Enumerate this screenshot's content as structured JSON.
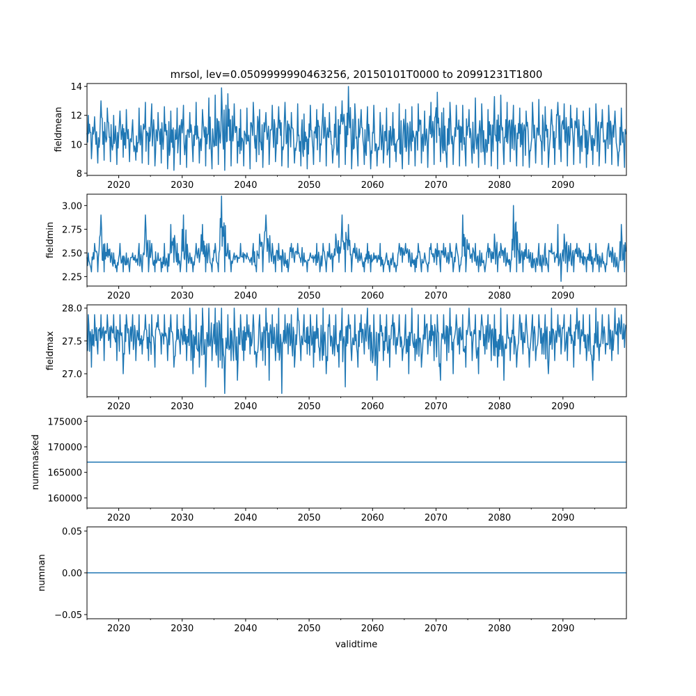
{
  "chart_data": {
    "title": "mrsol, lev=0.0509999990463256, 20150101T0000 to 20991231T1800",
    "xlabel": "validtime",
    "xlim": [
      2015,
      2100
    ],
    "x_ticks": [
      2020,
      2030,
      2040,
      2050,
      2060,
      2070,
      2080,
      2090
    ],
    "x_tick_labels": [
      "2020",
      "2030",
      "2040",
      "2050",
      "2060",
      "2070",
      "2080",
      "2090"
    ],
    "series_color": "#1f77b4",
    "panels": [
      {
        "name": "fieldmean",
        "type": "line",
        "ylabel": "fieldmean",
        "ylim": [
          7.85,
          14.2
        ],
        "yticks": [
          8,
          10,
          12,
          14
        ],
        "ytick_labels": [
          "8",
          "10",
          "12",
          "14"
        ],
        "x": [
          2015,
          2016,
          2017,
          2018,
          2019,
          2020,
          2021,
          2022,
          2023,
          2024,
          2025,
          2026,
          2027,
          2028,
          2029,
          2030,
          2031,
          2032,
          2033,
          2034,
          2035,
          2036,
          2037,
          2038,
          2039,
          2040,
          2041,
          2042,
          2043,
          2044,
          2045,
          2046,
          2047,
          2048,
          2049,
          2050,
          2051,
          2052,
          2053,
          2054,
          2055,
          2056,
          2057,
          2058,
          2059,
          2060,
          2061,
          2062,
          2063,
          2064,
          2065,
          2066,
          2067,
          2068,
          2069,
          2070,
          2071,
          2072,
          2073,
          2074,
          2075,
          2076,
          2077,
          2078,
          2079,
          2080,
          2081,
          2082,
          2083,
          2084,
          2085,
          2086,
          2087,
          2088,
          2089,
          2090,
          2091,
          2092,
          2093,
          2094,
          2095,
          2096,
          2097,
          2098,
          2099,
          2100
        ],
        "ymax": [
          12.0,
          11.9,
          13.0,
          12.5,
          12.0,
          12.3,
          12.4,
          11.7,
          12.5,
          12.9,
          12.8,
          12.2,
          12.6,
          12.3,
          12.5,
          12.7,
          12.2,
          12.9,
          12.4,
          13.2,
          13.4,
          13.9,
          13.5,
          12.8,
          12.4,
          12.5,
          12.9,
          12.4,
          12.2,
          12.7,
          12.6,
          12.9,
          12.2,
          12.8,
          12.1,
          12.7,
          12.4,
          12.8,
          12.2,
          12.6,
          13.0,
          14.0,
          12.8,
          12.4,
          12.6,
          12.7,
          12.2,
          12.5,
          12.2,
          12.8,
          12.4,
          12.6,
          12.8,
          12.3,
          12.9,
          13.6,
          12.5,
          12.9,
          12.7,
          12.7,
          12.4,
          13.2,
          12.8,
          12.4,
          13.3,
          13.4,
          12.9,
          12.7,
          12.5,
          12.3,
          12.9,
          13.1,
          12.6,
          12.4,
          12.9,
          12.8,
          12.7,
          12.5,
          12.3,
          12.5,
          12.8,
          12.4,
          12.7,
          12.3,
          12.5,
          12.4
        ],
        "ymin": [
          9.0,
          8.7,
          8.9,
          8.8,
          8.6,
          9.1,
          8.8,
          8.9,
          8.7,
          8.6,
          8.5,
          8.7,
          8.3,
          8.2,
          8.6,
          8.4,
          8.8,
          8.7,
          8.5,
          8.3,
          8.6,
          8.2,
          8.5,
          8.7,
          8.5,
          8.3,
          8.8,
          8.4,
          8.6,
          8.8,
          8.5,
          8.4,
          8.7,
          8.5,
          8.3,
          8.6,
          8.8,
          8.5,
          8.7,
          8.4,
          8.6,
          8.3,
          8.5,
          8.6,
          8.3,
          8.5,
          8.7,
          8.4,
          8.8,
          8.3,
          8.6,
          8.5,
          8.7,
          8.4,
          8.6,
          8.8,
          8.4,
          8.6,
          8.5,
          8.5,
          8.7,
          8.4,
          8.6,
          8.5,
          8.3,
          8.6,
          8.8,
          8.5,
          8.5,
          8.4,
          8.7,
          8.6,
          8.4,
          8.6,
          8.8,
          8.5,
          8.6,
          8.7,
          8.4,
          8.6,
          8.5,
          8.7,
          8.6,
          8.5,
          8.4,
          8.5
        ]
      },
      {
        "name": "fieldmin",
        "type": "line",
        "ylabel": "fieldmin",
        "ylim": [
          2.15,
          3.12
        ],
        "yticks": [
          2.25,
          2.5,
          2.75,
          3.0
        ],
        "ytick_labels": [
          "2.25",
          "2.50",
          "2.75",
          "3.00"
        ],
        "x": [
          2015,
          2016,
          2017,
          2018,
          2019,
          2020,
          2021,
          2022,
          2023,
          2024,
          2025,
          2026,
          2027,
          2028,
          2029,
          2030,
          2031,
          2032,
          2033,
          2034,
          2035,
          2036,
          2037,
          2038,
          2039,
          2040,
          2041,
          2042,
          2043,
          2044,
          2045,
          2046,
          2047,
          2048,
          2049,
          2050,
          2051,
          2052,
          2053,
          2054,
          2055,
          2056,
          2057,
          2058,
          2059,
          2060,
          2061,
          2062,
          2063,
          2064,
          2065,
          2066,
          2067,
          2068,
          2069,
          2070,
          2071,
          2072,
          2073,
          2074,
          2075,
          2076,
          2077,
          2078,
          2079,
          2080,
          2081,
          2082,
          2083,
          2084,
          2085,
          2086,
          2087,
          2088,
          2089,
          2090,
          2091,
          2092,
          2093,
          2094,
          2095,
          2096,
          2097,
          2098,
          2099,
          2100
        ],
        "ymax": [
          2.5,
          2.6,
          2.9,
          2.6,
          2.5,
          2.6,
          2.5,
          2.5,
          2.6,
          2.9,
          2.6,
          2.5,
          2.6,
          2.8,
          2.6,
          2.9,
          2.5,
          2.6,
          2.8,
          2.6,
          2.6,
          3.1,
          2.6,
          2.5,
          2.6,
          2.5,
          2.6,
          2.7,
          2.9,
          2.6,
          2.6,
          2.5,
          2.6,
          2.6,
          2.5,
          2.5,
          2.6,
          2.6,
          2.6,
          2.7,
          2.9,
          2.8,
          2.6,
          2.5,
          2.6,
          2.5,
          2.6,
          2.5,
          2.5,
          2.6,
          2.6,
          2.5,
          2.6,
          2.5,
          2.6,
          2.6,
          2.6,
          2.6,
          2.6,
          2.9,
          2.6,
          2.6,
          2.5,
          2.6,
          2.7,
          2.6,
          2.5,
          3.0,
          2.6,
          2.6,
          2.5,
          2.6,
          2.6,
          2.6,
          2.8,
          2.7,
          2.6,
          2.6,
          2.5,
          2.6,
          2.6,
          2.5,
          2.6,
          2.5,
          2.8,
          2.5
        ],
        "ymin": [
          2.3,
          2.3,
          2.3,
          2.4,
          2.3,
          2.3,
          2.3,
          2.4,
          2.3,
          2.3,
          2.3,
          2.3,
          2.3,
          2.4,
          2.3,
          2.3,
          2.3,
          2.4,
          2.3,
          2.3,
          2.3,
          2.3,
          2.3,
          2.4,
          2.4,
          2.4,
          2.3,
          2.3,
          2.4,
          2.3,
          2.3,
          2.3,
          2.4,
          2.4,
          2.3,
          2.4,
          2.3,
          2.3,
          2.3,
          2.4,
          2.3,
          2.3,
          2.4,
          2.3,
          2.3,
          2.4,
          2.3,
          2.3,
          2.3,
          2.4,
          2.4,
          2.3,
          2.3,
          2.3,
          2.4,
          2.3,
          2.4,
          2.3,
          2.3,
          2.3,
          2.4,
          2.3,
          2.3,
          2.4,
          2.3,
          2.4,
          2.3,
          2.3,
          2.3,
          2.4,
          2.3,
          2.3,
          2.3,
          2.4,
          2.2,
          2.3,
          2.3,
          2.4,
          2.3,
          2.3,
          2.3,
          2.3,
          2.4,
          2.3,
          2.3,
          2.3
        ]
      },
      {
        "name": "fieldmax",
        "type": "line",
        "ylabel": "fieldmax",
        "ylim": [
          26.65,
          28.05
        ],
        "yticks": [
          27.0,
          27.5,
          28.0
        ],
        "ytick_labels": [
          "27.0",
          "27.5",
          "28.0"
        ],
        "x": [
          2015,
          2016,
          2017,
          2018,
          2019,
          2020,
          2021,
          2022,
          2023,
          2024,
          2025,
          2026,
          2027,
          2028,
          2029,
          2030,
          2031,
          2032,
          2033,
          2034,
          2035,
          2036,
          2037,
          2038,
          2039,
          2040,
          2041,
          2042,
          2043,
          2044,
          2045,
          2046,
          2047,
          2048,
          2049,
          2050,
          2051,
          2052,
          2053,
          2054,
          2055,
          2056,
          2057,
          2058,
          2059,
          2060,
          2061,
          2062,
          2063,
          2064,
          2065,
          2066,
          2067,
          2068,
          2069,
          2070,
          2071,
          2072,
          2073,
          2074,
          2075,
          2076,
          2077,
          2078,
          2079,
          2080,
          2081,
          2082,
          2083,
          2084,
          2085,
          2086,
          2087,
          2088,
          2089,
          2090,
          2091,
          2092,
          2093,
          2094,
          2095,
          2096,
          2097,
          2098,
          2099,
          2100
        ],
        "ymax": [
          27.9,
          27.9,
          27.9,
          27.9,
          27.9,
          27.9,
          27.9,
          27.9,
          27.9,
          27.9,
          27.9,
          27.9,
          27.9,
          27.9,
          27.9,
          27.9,
          28.0,
          27.9,
          28.0,
          28.0,
          28.0,
          28.0,
          27.9,
          28.0,
          27.9,
          27.9,
          27.9,
          27.9,
          28.0,
          27.9,
          28.0,
          27.9,
          27.9,
          28.0,
          27.9,
          27.9,
          27.9,
          28.0,
          27.9,
          27.9,
          28.0,
          27.9,
          27.9,
          27.9,
          28.0,
          27.9,
          27.9,
          27.9,
          27.9,
          27.9,
          27.9,
          28.0,
          27.9,
          27.9,
          27.9,
          27.9,
          27.9,
          28.0,
          27.9,
          27.9,
          28.0,
          27.9,
          27.9,
          27.9,
          27.9,
          28.0,
          27.9,
          27.9,
          27.9,
          27.9,
          27.9,
          27.9,
          27.9,
          28.0,
          27.9,
          27.9,
          27.9,
          28.0,
          27.9,
          27.9,
          28.0,
          27.9,
          27.9,
          28.0,
          27.9,
          27.9
        ],
        "ymin": [
          27.1,
          27.3,
          27.2,
          27.4,
          27.2,
          27.0,
          27.3,
          27.2,
          27.3,
          27.2,
          27.1,
          27.3,
          27.2,
          27.1,
          27.3,
          27.2,
          27.0,
          27.1,
          26.8,
          27.2,
          27.1,
          26.7,
          27.2,
          26.9,
          27.2,
          27.3,
          27.1,
          27.2,
          26.9,
          27.2,
          26.7,
          27.3,
          27.1,
          27.2,
          27.3,
          27.1,
          27.2,
          27.0,
          27.3,
          27.1,
          26.8,
          27.2,
          27.1,
          27.3,
          27.2,
          26.9,
          27.2,
          27.1,
          27.3,
          27.2,
          27.0,
          27.2,
          27.1,
          27.3,
          27.2,
          26.9,
          27.2,
          27.0,
          27.3,
          27.1,
          27.2,
          27.0,
          27.3,
          27.2,
          27.1,
          26.9,
          27.2,
          27.1,
          27.3,
          27.1,
          27.2,
          27.3,
          27.0,
          27.2,
          27.3,
          27.2,
          27.1,
          27.3,
          27.2,
          26.9,
          27.2,
          27.3,
          27.2,
          27.3,
          27.4,
          27.5
        ]
      },
      {
        "name": "nummasked",
        "type": "line",
        "ylabel": "nummasked",
        "ylim": [
          158000,
          176000
        ],
        "yticks": [
          160000,
          165000,
          170000,
          175000
        ],
        "ytick_labels": [
          "160000",
          "165000",
          "170000",
          "175000"
        ],
        "x": [
          2015,
          2100
        ],
        "values": [
          167000,
          167000
        ]
      },
      {
        "name": "numnan",
        "type": "line",
        "ylabel": "numnan",
        "ylim": [
          -0.055,
          0.055
        ],
        "yticks": [
          -0.05,
          0.0,
          0.05
        ],
        "ytick_labels": [
          "−0.05",
          "0.00",
          "0.05"
        ],
        "x": [
          2015,
          2100
        ],
        "values": [
          0,
          0
        ]
      }
    ]
  }
}
